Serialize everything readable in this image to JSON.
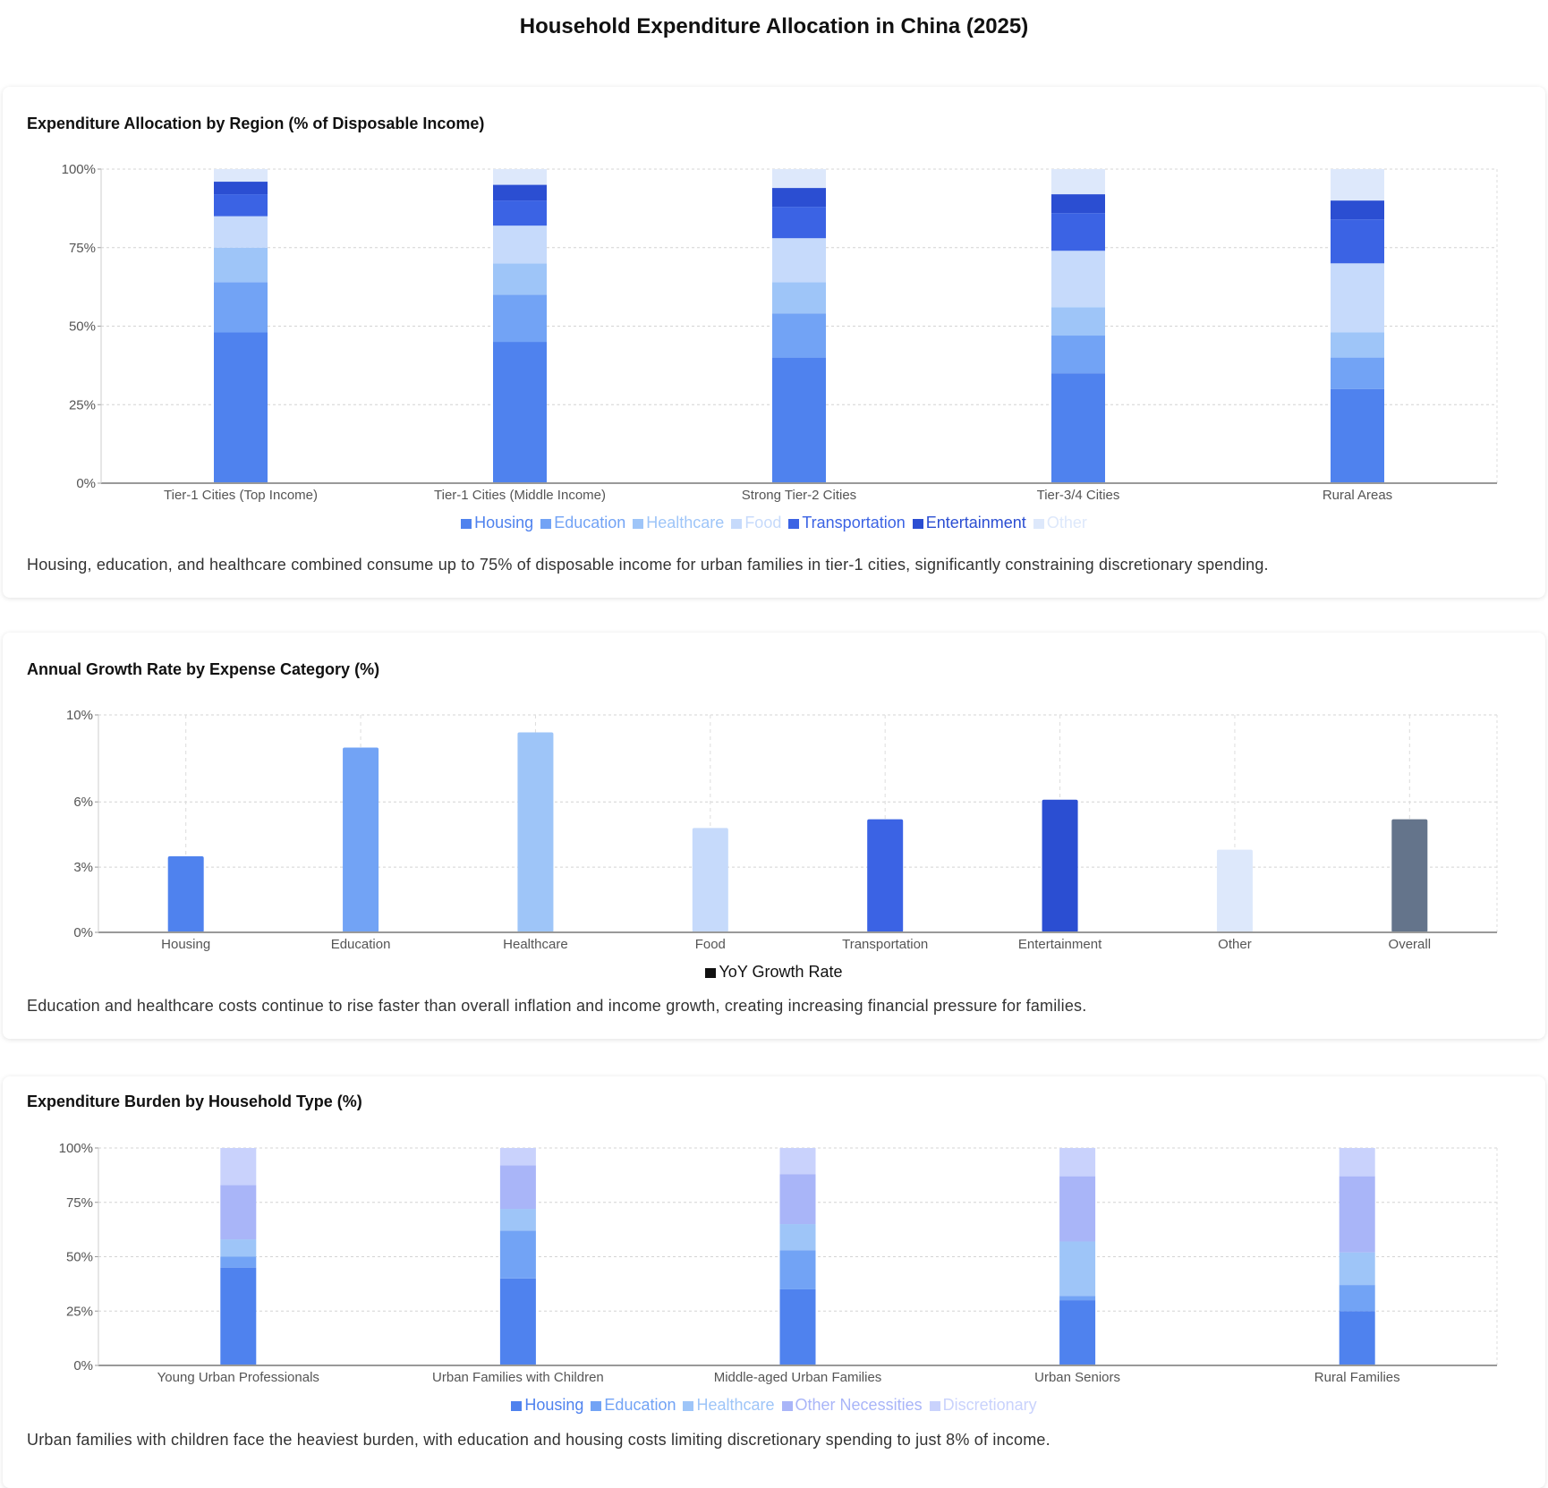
{
  "page_title": "Household Expenditure Allocation in China (2025)",
  "chart_data": [
    {
      "type": "bar",
      "stacked": true,
      "title": "Expenditure Allocation by Region (% of Disposable Income)",
      "categories": [
        "Tier-1 Cities (Top Income)",
        "Tier-1 Cities (Middle Income)",
        "Strong Tier-2 Cities",
        "Tier-3/4 Cities",
        "Rural Areas"
      ],
      "ylim": [
        0,
        100
      ],
      "yticks": [
        0,
        25,
        50,
        75,
        100
      ],
      "ytick_labels": [
        "0%",
        "25%",
        "50%",
        "75%",
        "100%"
      ],
      "grid": true,
      "legend": "bottom",
      "series": [
        {
          "name": "Housing",
          "color": "#4f82ee",
          "values": [
            48,
            45,
            40,
            35,
            30
          ]
        },
        {
          "name": "Education",
          "color": "#72a3f5",
          "values": [
            16,
            15,
            14,
            12,
            10
          ]
        },
        {
          "name": "Healthcare",
          "color": "#9ec5f8",
          "values": [
            11,
            10,
            10,
            9,
            8
          ]
        },
        {
          "name": "Food",
          "color": "#c6dafb",
          "values": [
            10,
            12,
            14,
            18,
            22
          ]
        },
        {
          "name": "Transportation",
          "color": "#3b63e4",
          "values": [
            7,
            8,
            10,
            12,
            14
          ]
        },
        {
          "name": "Entertainment",
          "color": "#2b4ed2",
          "values": [
            4,
            5,
            6,
            6,
            6
          ]
        },
        {
          "name": "Other",
          "color": "#dde8fb",
          "values": [
            4,
            5,
            6,
            8,
            10
          ]
        }
      ],
      "note": "Housing, education, and healthcare combined consume up to 75% of disposable income for urban families in tier-1 cities, significantly constraining discretionary spending."
    },
    {
      "type": "bar",
      "stacked": false,
      "title": "Annual Growth Rate by Expense Category (%)",
      "categories": [
        "Housing",
        "Education",
        "Healthcare",
        "Food",
        "Transportation",
        "Entertainment",
        "Other",
        "Overall"
      ],
      "ylim": [
        0,
        10
      ],
      "yticks": [
        0,
        3,
        6,
        10
      ],
      "ytick_labels": [
        "0%",
        "3%",
        "6%",
        "10%"
      ],
      "grid": true,
      "legend": "bottom",
      "series": [
        {
          "name": "YoY Growth Rate",
          "color": "#111111",
          "values": [
            3.5,
            8.5,
            9.2,
            4.8,
            5.2,
            6.1,
            3.8,
            5.2
          ],
          "bar_colors": [
            "#4f82ee",
            "#72a3f5",
            "#9ec5f8",
            "#c6dafb",
            "#3b63e4",
            "#2b4ed2",
            "#dde8fb",
            "#64748b"
          ]
        }
      ],
      "note": "Education and healthcare costs continue to rise faster than overall inflation and income growth, creating increasing financial pressure for families."
    },
    {
      "type": "bar",
      "stacked": true,
      "title": "Expenditure Burden by Household Type (%)",
      "categories": [
        "Young Urban Professionals",
        "Urban Families with Children",
        "Middle-aged Urban Families",
        "Urban Seniors",
        "Rural Families"
      ],
      "ylim": [
        0,
        100
      ],
      "yticks": [
        0,
        25,
        50,
        75,
        100
      ],
      "ytick_labels": [
        "0%",
        "25%",
        "50%",
        "75%",
        "100%"
      ],
      "grid": true,
      "legend": "bottom",
      "series": [
        {
          "name": "Housing",
          "color": "#4f82ee",
          "values": [
            45,
            40,
            35,
            30,
            25
          ]
        },
        {
          "name": "Education",
          "color": "#72a3f5",
          "values": [
            5,
            22,
            18,
            2,
            12
          ]
        },
        {
          "name": "Healthcare",
          "color": "#9ec5f8",
          "values": [
            8,
            10,
            12,
            25,
            15
          ]
        },
        {
          "name": "Other Necessities",
          "color": "#a9b5f8",
          "values": [
            25,
            20,
            23,
            30,
            35
          ]
        },
        {
          "name": "Discretionary",
          "color": "#c9d2fc",
          "values": [
            17,
            8,
            12,
            13,
            13
          ]
        }
      ],
      "note": "Urban families with children face the heaviest burden, with education and housing costs limiting discretionary spending to just 8% of income."
    }
  ]
}
